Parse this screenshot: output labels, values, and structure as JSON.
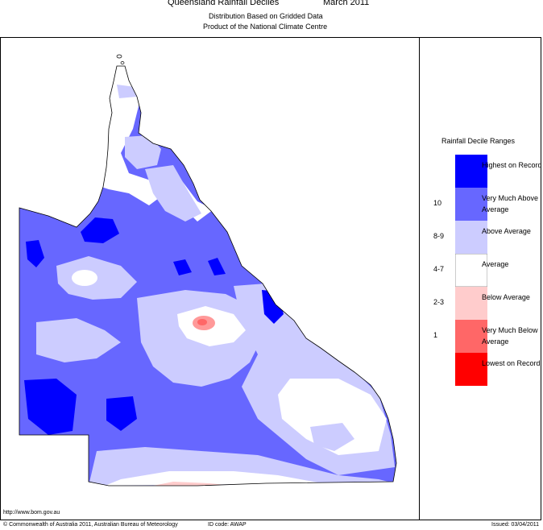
{
  "header": {
    "title": "Queensland Rainfall Deciles",
    "period": "March 2011",
    "subtitle1": "Distribution Based on Gridded Data",
    "subtitle2": "Product of the National Climate Centre"
  },
  "legend": {
    "title": "Rainfall Decile Ranges",
    "items": [
      {
        "label": "Highest on Record",
        "rank": "",
        "color": "#0000ff"
      },
      {
        "label": "Very Much Above Average",
        "rank": "10",
        "color": "#6767ff"
      },
      {
        "label": "Above Average",
        "rank": "8-9",
        "color": "#ccccff"
      },
      {
        "label": "Average",
        "rank": "4-7",
        "color": "#ffffff"
      },
      {
        "label": "Below Average",
        "rank": "2-3",
        "color": "#ffcccc"
      },
      {
        "label": "Very Much Below Average",
        "rank": "1",
        "color": "#ff6767"
      },
      {
        "label": "Lowest on Record",
        "rank": "",
        "color": "#ff0000"
      }
    ]
  },
  "footer": {
    "url": "http://www.bom.gov.au",
    "copyright": "© Commonwealth of Australia 2011, Australian Bureau of Meteorology",
    "id_code": "ID code: AWAP",
    "issued": "Issued: 03/04/2011"
  }
}
